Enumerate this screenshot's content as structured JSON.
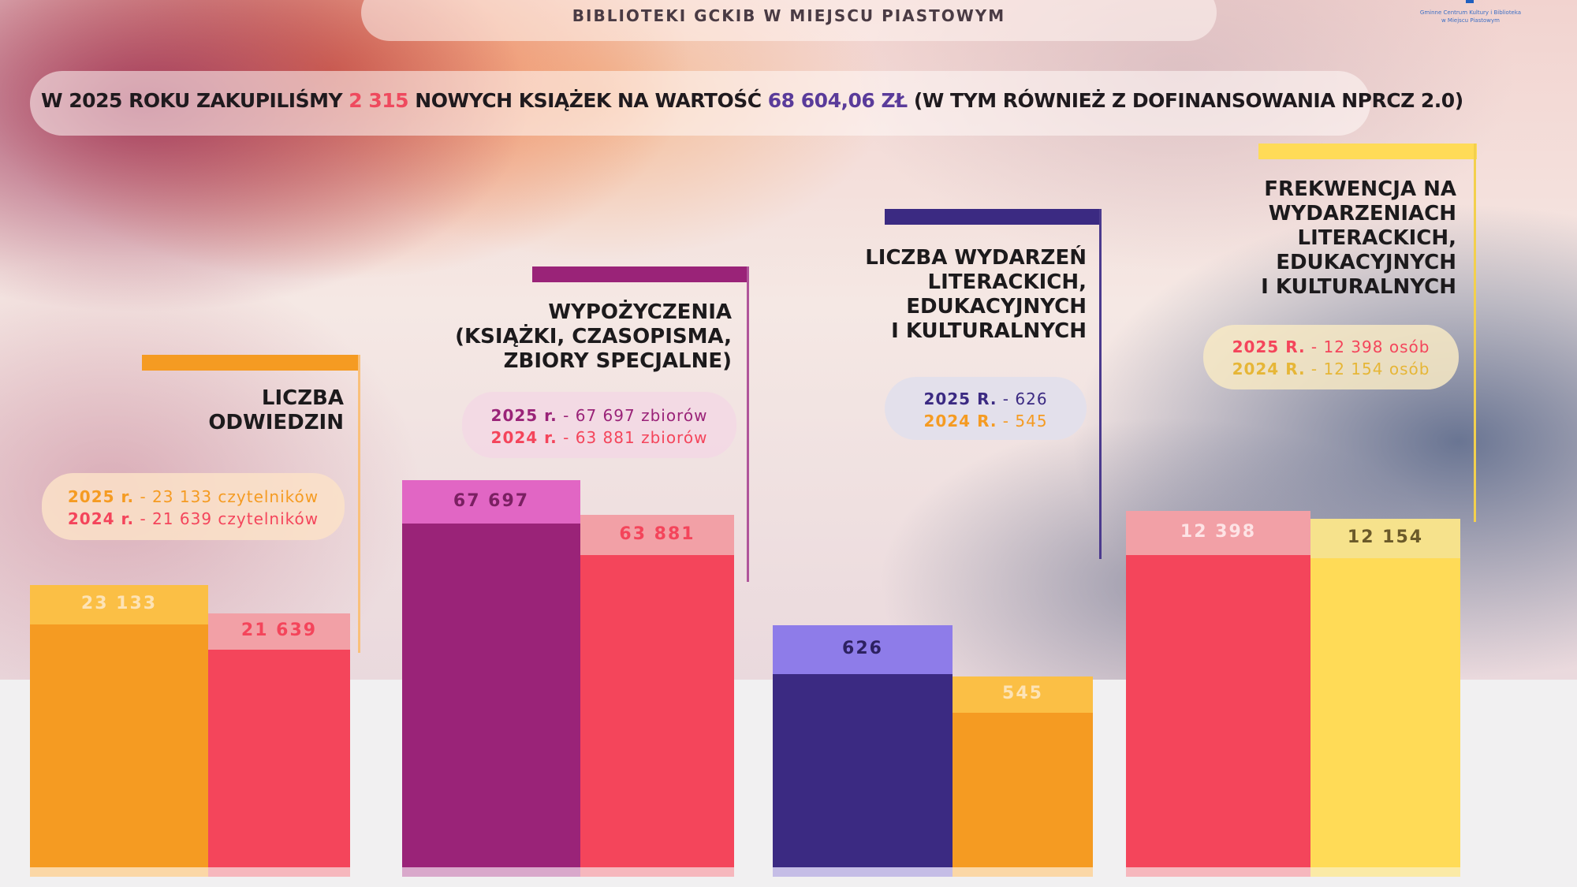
{
  "header": {
    "subtitle": "BIBLIOTEKI GCKIB W MIEJSCU PIASTOWYM",
    "logo_line1": "Gminne Centrum Kultury i Biblioteka",
    "logo_line2": "w Miejscu Piastowym"
  },
  "banner": {
    "part1": "W 2025 ROKU ZAKUPILIŚMY ",
    "count": "2 315",
    "part2": " NOWYCH KSIĄŻEK NA WARTOŚĆ ",
    "amount": "68 604,06 ZŁ",
    "part3": " (W TYM RÓWNIEŻ Z DOFINANSOWANIA NPRCZ 2.0)"
  },
  "colors": {
    "orange": "#f59b22",
    "orange_light": "#fbbf45",
    "coral": "#f4455b",
    "coral_light": "#f2a0a6",
    "magenta": "#9a2378",
    "magenta_light": "#e166c4",
    "indigo": "#3b2a82",
    "indigo_light": "#8e7ce9",
    "yellow": "#ffdb57",
    "yellow_light": "#f6e28c"
  },
  "chart_data": [
    {
      "type": "bar",
      "title": "LICZBA ODWIEDZIN",
      "categories": [
        "2025 r.",
        "2024 r."
      ],
      "values": [
        23133,
        21639
      ],
      "value_labels": [
        "23 133",
        "21 639"
      ],
      "legend": [
        "2025 r.",
        " - 23 133 czytelników",
        "2024 r.",
        " - 21 639 czytelników"
      ]
    },
    {
      "type": "bar",
      "title": "WYPOŻYCZENIA (KSIĄŻKI, CZASOPISMA, ZBIORY SPECJALNE)",
      "categories": [
        "2025 r.",
        "2024 r."
      ],
      "values": [
        67697,
        63881
      ],
      "value_labels": [
        "67 697",
        "63 881"
      ],
      "legend": [
        "2025 r.",
        " - 67 697 zbiorów",
        "2024 r.",
        " - 63 881 zbiorów"
      ]
    },
    {
      "type": "bar",
      "title": "LICZBA WYDARZEŃ LITERACKICH, EDUKACYJNYCH I KULTURALNYCH",
      "categories": [
        "2025 R.",
        "2024 R."
      ],
      "values": [
        626,
        545
      ],
      "value_labels": [
        "626",
        "545"
      ],
      "legend": [
        "2025 R.",
        " - 626",
        "2024 R.",
        " - 545"
      ]
    },
    {
      "type": "bar",
      "title": "FREKWENCJA NA WYDARZENIACH LITERACKICH, EDUKACYJNYCH I KULTURALNYCH",
      "categories": [
        "2025 R.",
        "2024 R."
      ],
      "values": [
        12398,
        12154
      ],
      "value_labels": [
        "12 398",
        "12 154"
      ],
      "legend": [
        "2025 R.",
        " - 12 398 osób",
        "2024 R.",
        " - 12 154 osób"
      ]
    }
  ]
}
